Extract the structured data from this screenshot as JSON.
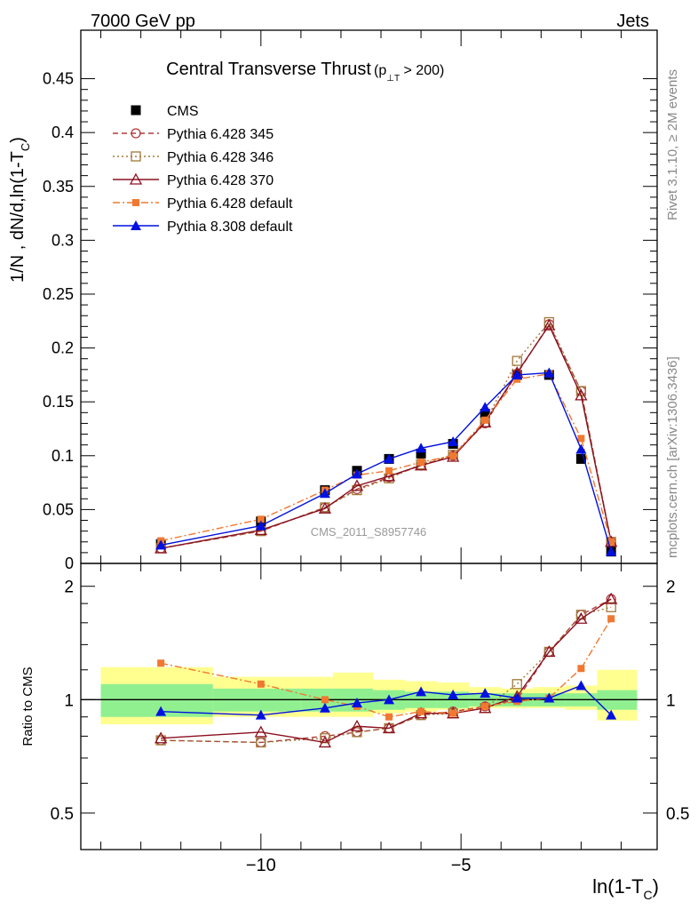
{
  "header": {
    "left": "7000 GeV pp",
    "right": "Jets"
  },
  "side_labels": {
    "top": "Rivet 3.1.10, ≥ 2M events",
    "bottom": "mcplots.cern.ch [arXiv:1306.3436]"
  },
  "watermark": "CMS_2011_S8957746",
  "colors": {
    "cms": "#000000",
    "py345": "#b03c3c",
    "py346": "#a07a3a",
    "py370": "#8b1020",
    "py6def": "#f07830",
    "py8def": "#0010e0",
    "band_inner": "#90f090",
    "band_outer": "#ffff90"
  },
  "chart_data": [
    {
      "type": "line",
      "title": "Central Transverse Thrust",
      "title_suffix": "(p",
      "title_sub": "⊥T",
      "title_tail": " > 200)",
      "ylabel": "1/N , dN/d,ln(1-T",
      "ylabel_sub": "C",
      "ylabel_tail": ")",
      "xlim": [
        -14.5,
        -0.1
      ],
      "ylim": [
        0,
        0.495
      ],
      "y_ticks": [
        0,
        0.05,
        0.1,
        0.15,
        0.2,
        0.25,
        0.3,
        0.35,
        0.4,
        0.45
      ],
      "y_tick_labels": [
        "0",
        "0.05",
        "0.1",
        "0.15",
        "0.2",
        "0.25",
        "0.3",
        "0.35",
        "0.4",
        "0.45"
      ],
      "x": [
        -12.5,
        -10.0,
        -8.4,
        -7.6,
        -6.8,
        -6.0,
        -5.2,
        -4.4,
        -3.6,
        -2.8,
        -2.0,
        -1.25
      ],
      "series": [
        {
          "name": "CMS",
          "key": "cms",
          "marker": "square-filled",
          "line": "none",
          "values": [
            0.018,
            0.039,
            0.068,
            0.086,
            0.097,
            0.102,
            0.111,
            0.139,
            0.175,
            0.175,
            0.097,
            0.011
          ]
        },
        {
          "name": "Pythia 6.428 345",
          "key": "py345",
          "marker": "circle-open",
          "line": "dashed",
          "values": [
            0.014,
            0.03,
            0.052,
            0.069,
            0.08,
            0.091,
            0.1,
            0.13,
            0.176,
            0.222,
            0.16,
            0.02
          ]
        },
        {
          "name": "Pythia 6.428 346",
          "key": "py346",
          "marker": "square-open",
          "line": "dotted",
          "values": [
            0.014,
            0.03,
            0.052,
            0.068,
            0.079,
            0.092,
            0.101,
            0.131,
            0.188,
            0.224,
            0.16,
            0.02
          ]
        },
        {
          "name": "Pythia 6.428 370",
          "key": "py370",
          "marker": "triangle-open",
          "line": "solid",
          "values": [
            0.014,
            0.031,
            0.051,
            0.072,
            0.081,
            0.091,
            0.099,
            0.131,
            0.177,
            0.221,
            0.156,
            0.02
          ]
        },
        {
          "name": "Pythia 6.428 default",
          "key": "py6def",
          "marker": "square-small-filled",
          "line": "dashdot",
          "values": [
            0.021,
            0.041,
            0.068,
            0.082,
            0.086,
            0.094,
            0.1,
            0.133,
            0.171,
            0.176,
            0.116,
            0.02
          ]
        },
        {
          "name": "Pythia 8.308 default",
          "key": "py8def",
          "marker": "triangle-filled",
          "line": "solid",
          "values": [
            0.017,
            0.035,
            0.065,
            0.083,
            0.097,
            0.107,
            0.113,
            0.145,
            0.175,
            0.177,
            0.106,
            0.011
          ]
        }
      ]
    },
    {
      "type": "line",
      "ylabel": "Ratio to CMS",
      "xlabel": "ln(1-T",
      "xlabel_sub": "C",
      "xlabel_tail": ")",
      "xlim": [
        -14.5,
        -0.1
      ],
      "ylim": [
        0.4,
        2.3
      ],
      "y_scale": "log",
      "y_ticks": [
        0.5,
        1,
        2
      ],
      "y_tick_labels": [
        "0.5",
        "1",
        "2"
      ],
      "x_ticks": [
        -10,
        -5
      ],
      "x_tick_labels": [
        "−10",
        "−5"
      ],
      "reference_line": 1,
      "bands": {
        "edges": [
          -14.0,
          -11.2,
          -9.0,
          -8.2,
          -7.2,
          -6.4,
          -5.6,
          -4.8,
          -4.0,
          -3.2,
          -2.4,
          -1.6,
          -0.6
        ],
        "inner": [
          [
            0.9,
            1.1
          ],
          [
            0.93,
            1.07
          ],
          [
            0.93,
            1.07
          ],
          [
            0.93,
            1.07
          ],
          [
            0.94,
            1.06
          ],
          [
            0.95,
            1.05
          ],
          [
            0.95,
            1.05
          ],
          [
            0.96,
            1.04
          ],
          [
            0.96,
            1.04
          ],
          [
            0.96,
            1.04
          ],
          [
            0.96,
            1.04
          ],
          [
            0.94,
            1.06
          ]
        ],
        "outer": [
          [
            0.86,
            1.22
          ],
          [
            0.9,
            1.15
          ],
          [
            0.9,
            1.15
          ],
          [
            0.9,
            1.18
          ],
          [
            0.92,
            1.13
          ],
          [
            0.93,
            1.12
          ],
          [
            0.94,
            1.11
          ],
          [
            0.95,
            1.08
          ],
          [
            0.95,
            1.07
          ],
          [
            0.95,
            1.08
          ],
          [
            0.94,
            1.09
          ],
          [
            0.88,
            1.2
          ]
        ]
      },
      "series": [
        {
          "name": "Pythia 6.428 345",
          "key": "py345",
          "marker": "circle-open",
          "line": "dashed",
          "values": [
            0.78,
            0.77,
            0.8,
            0.82,
            0.84,
            0.91,
            0.93,
            0.96,
            1.0,
            1.34,
            1.68,
            1.85
          ]
        },
        {
          "name": "Pythia 6.428 346",
          "key": "py346",
          "marker": "square-open",
          "line": "dotted",
          "values": [
            0.78,
            0.77,
            0.79,
            0.82,
            0.84,
            0.91,
            0.92,
            0.95,
            1.1,
            1.34,
            1.68,
            1.76
          ]
        },
        {
          "name": "Pythia 6.428 370",
          "key": "py370",
          "marker": "triangle-open",
          "line": "solid",
          "values": [
            0.79,
            0.82,
            0.77,
            0.85,
            0.84,
            0.92,
            0.92,
            0.95,
            1.02,
            1.34,
            1.64,
            1.85
          ]
        },
        {
          "name": "Pythia 6.428 default",
          "key": "py6def",
          "marker": "square-small-filled",
          "line": "dashdot",
          "values": [
            1.25,
            1.1,
            1.0,
            0.96,
            0.9,
            0.93,
            0.92,
            0.96,
            0.99,
            1.01,
            1.21,
            1.64
          ]
        },
        {
          "name": "Pythia 8.308 default",
          "key": "py8def",
          "marker": "triangle-filled",
          "line": "solid",
          "values": [
            0.93,
            0.91,
            0.95,
            0.98,
            1.0,
            1.05,
            1.03,
            1.04,
            1.01,
            1.01,
            1.09,
            0.91
          ]
        }
      ]
    }
  ]
}
